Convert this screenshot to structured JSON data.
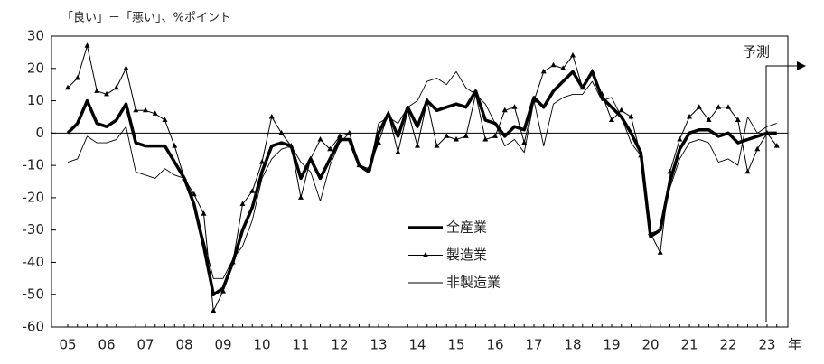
{
  "chart_data": {
    "type": "line",
    "y_label": "「良い」－「悪い」、%ポイント",
    "x_unit": "年",
    "annotation": "予測",
    "categories": [
      "05",
      null,
      null,
      null,
      "06",
      null,
      null,
      null,
      "07",
      null,
      null,
      null,
      "08",
      null,
      null,
      null,
      "09",
      null,
      null,
      null,
      "10",
      null,
      null,
      null,
      "11",
      null,
      null,
      null,
      "12",
      null,
      null,
      null,
      "13",
      null,
      null,
      null,
      "14",
      null,
      null,
      null,
      "15",
      null,
      null,
      null,
      "16",
      null,
      null,
      null,
      "17",
      null,
      null,
      null,
      "18",
      null,
      null,
      null,
      "19",
      null,
      null,
      null,
      "20",
      null,
      null,
      null,
      "21",
      null,
      null,
      null,
      "22",
      null,
      null,
      null,
      "23",
      null
    ],
    "series": [
      {
        "name": "全産業",
        "color": "#000000",
        "line_width": 3.5,
        "marker": "none",
        "values": [
          0,
          3,
          10,
          3,
          2,
          4,
          9,
          -3,
          -4,
          -4,
          -4,
          -9,
          -14,
          -22,
          -35,
          -50,
          -48,
          -40,
          -30,
          -23,
          -12,
          -4,
          -3,
          -4,
          -14,
          -8,
          -14,
          -8,
          -2,
          -2,
          -10,
          -12,
          0,
          6,
          -1,
          8,
          2,
          10,
          7,
          8,
          9,
          8,
          13,
          4,
          3,
          -1,
          2,
          1,
          11,
          8,
          13,
          16,
          19,
          14,
          19,
          11,
          8,
          5,
          0,
          -6,
          -32,
          -30,
          -15,
          -5,
          0,
          1,
          1,
          -1,
          0,
          -3,
          -2,
          -1,
          0,
          0
        ]
      },
      {
        "name": "製造業",
        "color": "#000000",
        "line_width": 1,
        "marker": "triangle",
        "values": [
          14,
          17,
          27,
          13,
          12,
          14,
          20,
          7,
          7,
          6,
          4,
          -4,
          -14,
          -19,
          -25,
          -55,
          -49,
          -40,
          -22,
          -18,
          -9,
          5,
          0,
          -4,
          -20,
          -8,
          -2,
          -5,
          -1,
          0,
          -10,
          -11,
          -3,
          6,
          -6,
          7,
          -4,
          10,
          -4,
          -1,
          -2,
          -1,
          12,
          -2,
          -1,
          7,
          8,
          -3,
          10,
          19,
          21,
          20,
          24,
          14,
          19,
          12,
          4,
          7,
          5,
          -7,
          -31,
          -37,
          -12,
          -2,
          5,
          8,
          4,
          8,
          8,
          4,
          -12,
          -5,
          0,
          -4
        ]
      },
      {
        "name": "非製造業",
        "color": "#000000",
        "line_width": 0.9,
        "marker": "none",
        "values": [
          -9,
          -8,
          -1,
          -3,
          -3,
          -2,
          2,
          -12,
          -13,
          -14,
          -11,
          -13,
          -14,
          -22,
          -33,
          -45,
          -45,
          -39,
          -35,
          -27,
          -14,
          -8,
          -5,
          -4,
          -9,
          -12,
          -21,
          -10,
          -3,
          0,
          -10,
          -12,
          3,
          5,
          3,
          8,
          10,
          16,
          17,
          15,
          19,
          14,
          12,
          9,
          3,
          -4,
          -2,
          -6,
          10,
          -4,
          9,
          11,
          12,
          12,
          16,
          10,
          11,
          5,
          -3,
          -7,
          -31,
          -30,
          -17,
          -8,
          -3,
          -2,
          -3,
          -9,
          -8,
          -10,
          5,
          0,
          2,
          3
        ]
      }
    ],
    "ylim": [
      -60,
      30
    ],
    "yticks": [
      30,
      20,
      10,
      0,
      -10,
      -20,
      -30,
      -40,
      -50,
      -60
    ],
    "zero_line": true
  }
}
